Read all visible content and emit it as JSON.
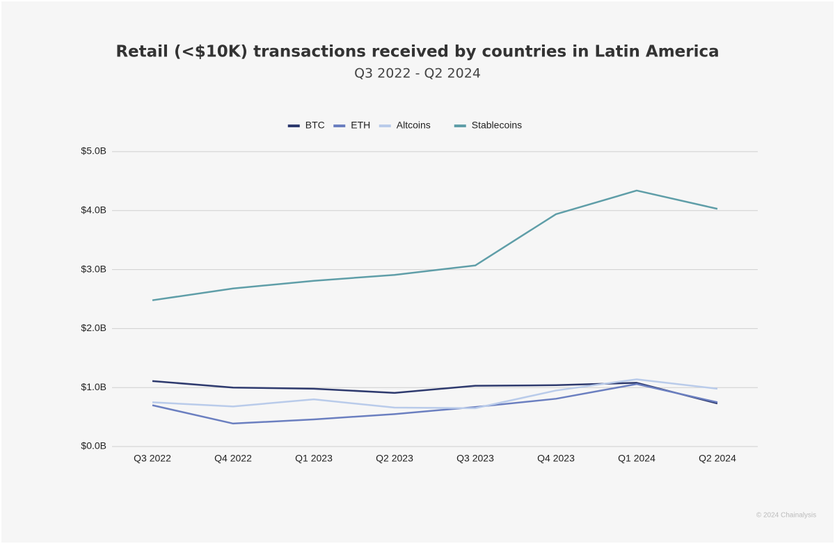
{
  "chart_data": {
    "type": "line",
    "title": "Retail (<$10K) transactions received by countries in Latin America",
    "subtitle": "Q3 2022 - Q2 2024",
    "categories": [
      "Q3 2022",
      "Q4 2022",
      "Q1 2023",
      "Q2 2023",
      "Q3 2023",
      "Q4 2023",
      "Q1 2024",
      "Q2 2024"
    ],
    "series": [
      {
        "name": "BTC",
        "color": "#2e3a6e",
        "values": [
          1.11,
          1.0,
          0.98,
          0.91,
          1.03,
          1.04,
          1.08,
          0.73
        ]
      },
      {
        "name": "ETH",
        "color": "#6b7fc0",
        "values": [
          0.7,
          0.39,
          0.46,
          0.55,
          0.67,
          0.81,
          1.06,
          0.75
        ]
      },
      {
        "name": "Altcoins",
        "color": "#b9cbea",
        "values": [
          0.75,
          0.68,
          0.8,
          0.66,
          0.65,
          0.95,
          1.14,
          0.98
        ]
      },
      {
        "name": "Stablecoins",
        "color": "#5f9ea8",
        "values": [
          2.48,
          2.68,
          2.81,
          2.91,
          3.07,
          3.94,
          4.34,
          4.03
        ]
      }
    ],
    "ylim": [
      0,
      5
    ],
    "yticks": [
      {
        "value": 0,
        "label": "$0.0B"
      },
      {
        "value": 1,
        "label": "$1.0B"
      },
      {
        "value": 2,
        "label": "$2.0B"
      },
      {
        "value": 3,
        "label": "$3.0B"
      },
      {
        "value": 4,
        "label": "$4.0B"
      },
      {
        "value": 5,
        "label": "$5.0B"
      }
    ],
    "grid": true,
    "legend": "top",
    "source": "© 2024 Chainalysis"
  }
}
